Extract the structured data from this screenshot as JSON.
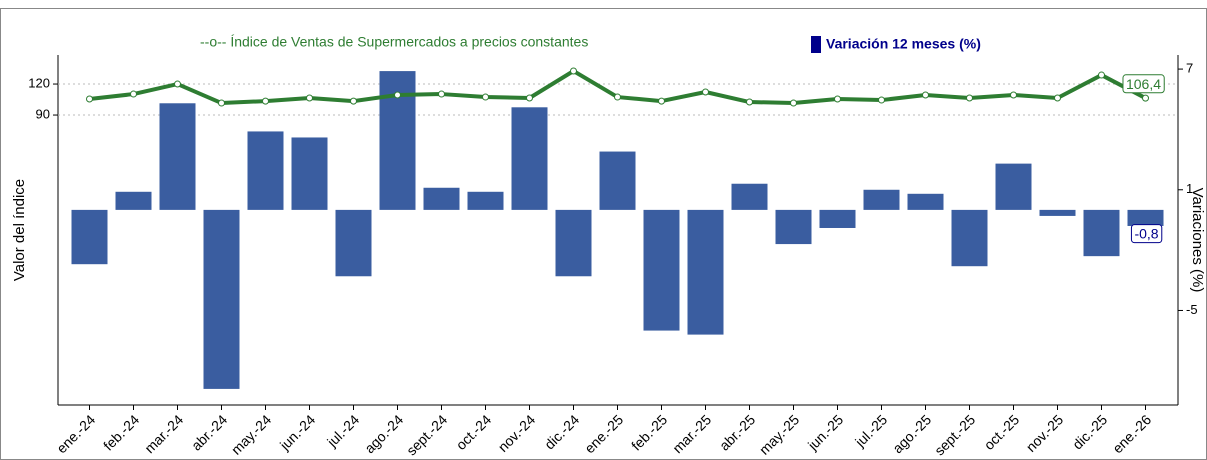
{
  "chart_data": {
    "type": "bar",
    "categories": [
      "ene.-24",
      "feb.-24",
      "mar.-24",
      "abr.-24",
      "may.-24",
      "jun.-24",
      "jul.-24",
      "ago.-24",
      "sept.-24",
      "oct.-24",
      "nov.-24",
      "dic.-24",
      "ene.-25",
      "feb.-25",
      "mar.-25",
      "abr.-25",
      "may.-25",
      "jun.-25",
      "jul.-25",
      "ago.-25",
      "sept.-25",
      "oct.-25",
      "nov.-25",
      "dic.-25",
      "ene.-26"
    ],
    "series": [
      {
        "name": "Variación 12 meses (%)",
        "type": "bar",
        "axis": "y2",
        "color": "#3a5da0",
        "values": [
          -2.7,
          0.9,
          5.3,
          -8.9,
          3.9,
          3.6,
          -3.3,
          6.9,
          1.1,
          0.9,
          5.1,
          -3.3,
          2.9,
          -6.0,
          -6.2,
          1.3,
          -1.7,
          -0.9,
          1.0,
          0.8,
          -2.8,
          2.3,
          -0.3,
          -2.3,
          -0.8
        ],
        "value_labels": [
          null,
          null,
          null,
          null,
          null,
          null,
          null,
          null,
          null,
          null,
          null,
          null,
          null,
          null,
          null,
          null,
          null,
          null,
          null,
          null,
          null,
          null,
          null,
          null,
          "-0,8"
        ]
      },
      {
        "name": "--o-- Índice de Ventas de Supermercados a precios constantes",
        "type": "line",
        "axis": "y",
        "color": "#2e7d32",
        "values": [
          105.5,
          110.3,
          120,
          101.6,
          103.5,
          106.5,
          103.5,
          109.4,
          110.3,
          107.4,
          106.5,
          132.6,
          107.4,
          103.5,
          112.3,
          102.6,
          101.6,
          105.5,
          104.5,
          109.4,
          106.5,
          109.4,
          106.5,
          128.7,
          106.4
        ],
        "value_labels": [
          null,
          null,
          null,
          null,
          null,
          null,
          null,
          null,
          null,
          null,
          null,
          null,
          null,
          null,
          null,
          null,
          null,
          null,
          null,
          null,
          null,
          null,
          null,
          null,
          "106,4"
        ]
      }
    ],
    "ylabel": "Valor del índice",
    "y2label": "Variaciones (%)",
    "ylim": [
      -190.6,
      148.1
    ],
    "yticks": [
      90,
      120
    ],
    "y2lim": [
      -9.7,
      7.7
    ],
    "y2ticks": [
      -5,
      1,
      7
    ],
    "grid": true
  }
}
